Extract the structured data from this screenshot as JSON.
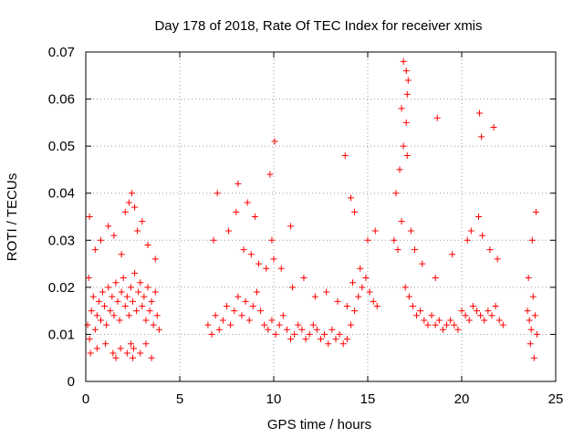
{
  "chart_data": {
    "type": "scatter",
    "title": "Day 178 of 2018, Rate Of TEC Index for receiver xmis",
    "xlabel": "GPS time / hours",
    "ylabel": "ROTI / TECUs",
    "xlim": [
      0,
      25
    ],
    "ylim": [
      0,
      0.07
    ],
    "xticks": [
      0,
      5,
      10,
      15,
      20,
      25
    ],
    "xtick_labels": [
      "0",
      "5",
      "10",
      "15",
      "20",
      "25"
    ],
    "yticks": [
      0,
      0.01,
      0.02,
      0.03,
      0.04,
      0.05,
      0.06,
      0.07
    ],
    "ytick_labels": [
      "0",
      "0.01",
      "0.02",
      "0.03",
      "0.04",
      "0.05",
      "0.06",
      "0.07"
    ],
    "grid": true,
    "marker": "+",
    "color": "#ff0000",
    "series": [
      {
        "x": [
          0.1,
          0.15,
          0.2,
          0.3,
          0.4,
          0.5,
          0.6,
          0.7,
          0.8,
          0.9,
          1.0,
          1.1,
          1.2,
          1.3,
          1.4,
          1.5,
          1.6,
          1.7,
          1.8,
          1.9,
          2.0,
          2.1,
          2.2,
          2.3,
          2.4,
          2.5,
          2.6,
          2.7,
          2.8,
          2.9,
          3.0,
          3.1,
          3.2,
          3.3,
          3.4,
          3.5,
          3.6,
          3.7,
          3.8,
          3.9,
          0.2,
          0.5,
          0.8,
          1.2,
          1.5,
          1.9,
          2.1,
          2.3,
          2.45,
          2.6,
          2.75,
          3.0,
          3.3,
          3.7,
          0.25,
          0.6,
          1.05,
          1.45,
          1.6,
          1.85,
          2.2,
          2.4,
          2.5,
          2.55,
          2.9,
          3.2,
          3.5,
          6.5,
          6.7,
          6.9,
          7.1,
          7.3,
          7.5,
          7.7,
          7.9,
          8.1,
          8.3,
          8.5,
          8.7,
          8.9,
          9.1,
          9.3,
          9.5,
          9.7,
          9.9,
          10.1,
          10.3,
          10.5,
          10.7,
          10.9,
          11.1,
          11.3,
          11.5,
          11.7,
          11.9,
          12.1,
          12.3,
          12.5,
          12.7,
          12.9,
          13.1,
          13.3,
          13.5,
          13.7,
          13.9,
          14.1,
          14.3,
          14.5,
          14.7,
          14.9,
          15.1,
          15.3,
          15.5,
          6.8,
          7.6,
          8.0,
          8.4,
          8.8,
          9.2,
          9.6,
          9.9,
          10.0,
          10.4,
          11.0,
          11.6,
          12.2,
          12.8,
          13.4,
          13.9,
          14.2,
          14.6,
          15.0,
          15.4,
          7.0,
          8.1,
          8.6,
          9.0,
          9.8,
          10.05,
          10.9,
          13.8,
          14.1,
          14.3,
          16.4,
          16.6,
          16.8,
          17.0,
          17.2,
          17.4,
          17.6,
          17.8,
          18.0,
          18.2,
          18.4,
          18.6,
          18.8,
          19.0,
          19.2,
          19.4,
          19.6,
          19.8,
          20.0,
          20.2,
          20.4,
          20.6,
          20.8,
          21.0,
          21.2,
          21.4,
          21.6,
          21.8,
          22.0,
          22.2,
          16.5,
          16.7,
          16.9,
          17.05,
          17.1,
          17.3,
          17.5,
          17.9,
          18.6,
          19.5,
          20.3,
          20.5,
          20.9,
          21.1,
          21.5,
          21.9,
          16.9,
          17.05,
          17.1,
          17.15,
          16.8,
          18.7,
          20.95,
          21.05,
          21.7,
          23.5,
          23.6,
          23.7,
          23.8,
          23.9,
          24.0,
          23.55,
          23.75,
          23.95,
          23.65,
          23.85
        ],
        "y": [
          0.012,
          0.022,
          0.009,
          0.015,
          0.018,
          0.011,
          0.014,
          0.017,
          0.013,
          0.019,
          0.016,
          0.012,
          0.02,
          0.015,
          0.018,
          0.014,
          0.021,
          0.017,
          0.013,
          0.019,
          0.022,
          0.016,
          0.018,
          0.014,
          0.02,
          0.017,
          0.023,
          0.015,
          0.019,
          0.021,
          0.016,
          0.018,
          0.013,
          0.02,
          0.015,
          0.017,
          0.012,
          0.019,
          0.014,
          0.011,
          0.035,
          0.028,
          0.03,
          0.033,
          0.031,
          0.027,
          0.036,
          0.038,
          0.04,
          0.037,
          0.032,
          0.034,
          0.029,
          0.026,
          0.006,
          0.007,
          0.008,
          0.006,
          0.005,
          0.007,
          0.006,
          0.008,
          0.005,
          0.007,
          0.006,
          0.008,
          0.005,
          0.012,
          0.01,
          0.014,
          0.011,
          0.013,
          0.016,
          0.012,
          0.015,
          0.018,
          0.014,
          0.017,
          0.013,
          0.016,
          0.019,
          0.015,
          0.012,
          0.011,
          0.013,
          0.01,
          0.012,
          0.014,
          0.011,
          0.009,
          0.01,
          0.012,
          0.011,
          0.009,
          0.01,
          0.012,
          0.011,
          0.009,
          0.01,
          0.008,
          0.011,
          0.009,
          0.01,
          0.008,
          0.009,
          0.012,
          0.015,
          0.018,
          0.02,
          0.022,
          0.019,
          0.017,
          0.016,
          0.03,
          0.032,
          0.036,
          0.028,
          0.027,
          0.025,
          0.024,
          0.03,
          0.026,
          0.024,
          0.02,
          0.022,
          0.018,
          0.019,
          0.017,
          0.016,
          0.021,
          0.024,
          0.03,
          0.032,
          0.04,
          0.042,
          0.038,
          0.035,
          0.044,
          0.051,
          0.033,
          0.048,
          0.039,
          0.036,
          0.03,
          0.028,
          0.034,
          0.02,
          0.018,
          0.016,
          0.014,
          0.015,
          0.013,
          0.012,
          0.014,
          0.012,
          0.013,
          0.011,
          0.012,
          0.013,
          0.012,
          0.011,
          0.015,
          0.014,
          0.013,
          0.016,
          0.015,
          0.014,
          0.013,
          0.015,
          0.014,
          0.016,
          0.013,
          0.012,
          0.04,
          0.045,
          0.05,
          0.055,
          0.048,
          0.032,
          0.028,
          0.025,
          0.022,
          0.027,
          0.03,
          0.032,
          0.035,
          0.031,
          0.028,
          0.026,
          0.068,
          0.066,
          0.061,
          0.064,
          0.058,
          0.056,
          0.057,
          0.052,
          0.054,
          0.015,
          0.013,
          0.011,
          0.018,
          0.014,
          0.01,
          0.022,
          0.03,
          0.036,
          0.008,
          0.005
        ]
      }
    ]
  }
}
